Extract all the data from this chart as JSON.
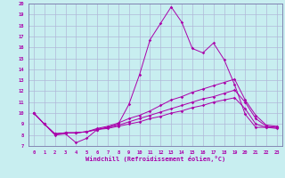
{
  "xlabel": "Windchill (Refroidissement éolien,°C)",
  "bg_color": "#c8eef0",
  "grid_color": "#b0b8d8",
  "line_color": "#aa00aa",
  "spine_color": "#7777aa",
  "xlim": [
    -0.5,
    23.5
  ],
  "ylim": [
    7,
    20
  ],
  "xticks": [
    0,
    1,
    2,
    3,
    4,
    5,
    6,
    7,
    8,
    9,
    10,
    11,
    12,
    13,
    14,
    15,
    16,
    17,
    18,
    19,
    20,
    21,
    22,
    23
  ],
  "yticks": [
    7,
    8,
    9,
    10,
    11,
    12,
    13,
    14,
    15,
    16,
    17,
    18,
    19,
    20
  ],
  "line1_x": [
    0,
    1,
    2,
    3,
    4,
    5,
    6,
    7,
    8,
    9,
    10,
    11,
    12,
    13,
    14,
    15,
    16,
    17,
    18,
    19,
    20,
    21,
    22,
    23
  ],
  "line1_y": [
    10,
    9,
    8.0,
    8.1,
    7.3,
    7.7,
    8.5,
    8.7,
    9.0,
    10.8,
    13.5,
    16.7,
    18.2,
    19.7,
    18.3,
    15.9,
    15.5,
    16.4,
    14.9,
    12.6,
    9.9,
    8.7,
    8.7,
    8.7
  ],
  "line2_x": [
    0,
    1,
    2,
    3,
    4,
    5,
    6,
    7,
    8,
    9,
    10,
    11,
    12,
    13,
    14,
    15,
    16,
    17,
    18,
    19,
    20,
    21,
    22,
    23
  ],
  "line2_y": [
    10,
    9,
    8.1,
    8.2,
    8.2,
    8.3,
    8.6,
    8.8,
    9.1,
    9.5,
    9.8,
    10.2,
    10.7,
    11.2,
    11.5,
    11.9,
    12.2,
    12.5,
    12.8,
    13.1,
    11.2,
    9.8,
    8.9,
    8.8
  ],
  "line3_x": [
    0,
    1,
    2,
    3,
    4,
    5,
    6,
    7,
    8,
    9,
    10,
    11,
    12,
    13,
    14,
    15,
    16,
    17,
    18,
    19,
    20,
    21,
    22,
    23
  ],
  "line3_y": [
    10,
    9,
    8.1,
    8.2,
    8.2,
    8.3,
    8.5,
    8.7,
    8.9,
    9.2,
    9.5,
    9.8,
    10.1,
    10.4,
    10.7,
    11.0,
    11.3,
    11.5,
    11.8,
    12.1,
    11.0,
    9.5,
    8.8,
    8.7
  ],
  "line4_x": [
    0,
    1,
    2,
    3,
    4,
    5,
    6,
    7,
    8,
    9,
    10,
    11,
    12,
    13,
    14,
    15,
    16,
    17,
    18,
    19,
    20,
    21,
    22,
    23
  ],
  "line4_y": [
    10,
    9,
    8.1,
    8.2,
    8.2,
    8.3,
    8.5,
    8.6,
    8.8,
    9.0,
    9.2,
    9.5,
    9.7,
    10.0,
    10.2,
    10.5,
    10.7,
    11.0,
    11.2,
    11.4,
    10.4,
    9.0,
    8.7,
    8.6
  ]
}
